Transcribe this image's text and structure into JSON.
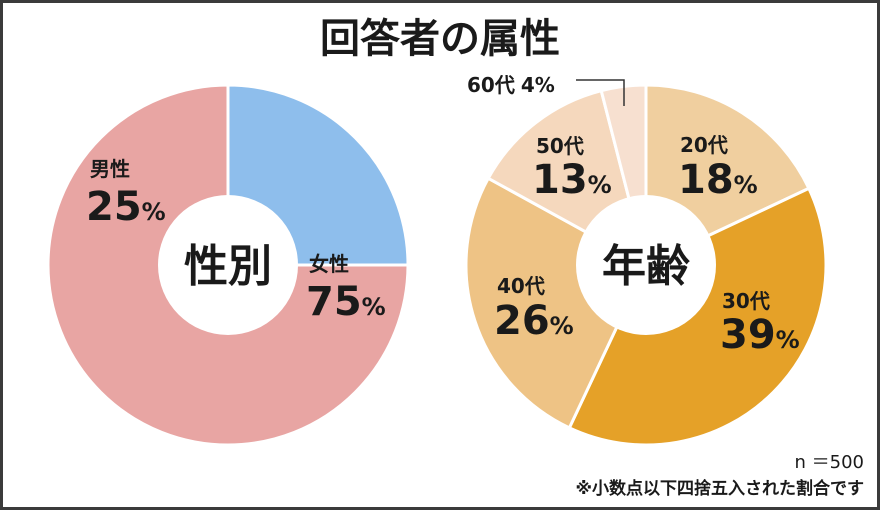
{
  "title": "回答者の属性",
  "colors": {
    "male": "#8ebeec",
    "female": "#e8a5a3",
    "age20": "#f0cf9f",
    "age30": "#e5a128",
    "age40": "#eec385",
    "age50": "#f5d8bd",
    "age60": "#f7e0d0"
  },
  "chart_data": [
    {
      "type": "pie",
      "center_label": "性別",
      "slices": [
        {
          "label": "男性",
          "value": 25,
          "pct_text": "25"
        },
        {
          "label": "女性",
          "value": 75,
          "pct_text": "75"
        }
      ]
    },
    {
      "type": "pie",
      "center_label": "年齢",
      "slices": [
        {
          "label": "20代",
          "value": 18,
          "pct_text": "18"
        },
        {
          "label": "30代",
          "value": 39,
          "pct_text": "39"
        },
        {
          "label": "40代",
          "value": 26,
          "pct_text": "26"
        },
        {
          "label": "50代",
          "value": 13,
          "pct_text": "13"
        },
        {
          "label": "60代",
          "value": 4,
          "pct_text": "4"
        }
      ]
    }
  ],
  "percent_sign": "%",
  "sample_size": "n ＝500",
  "footnote": "※小数点以下四捨五入された割合です"
}
